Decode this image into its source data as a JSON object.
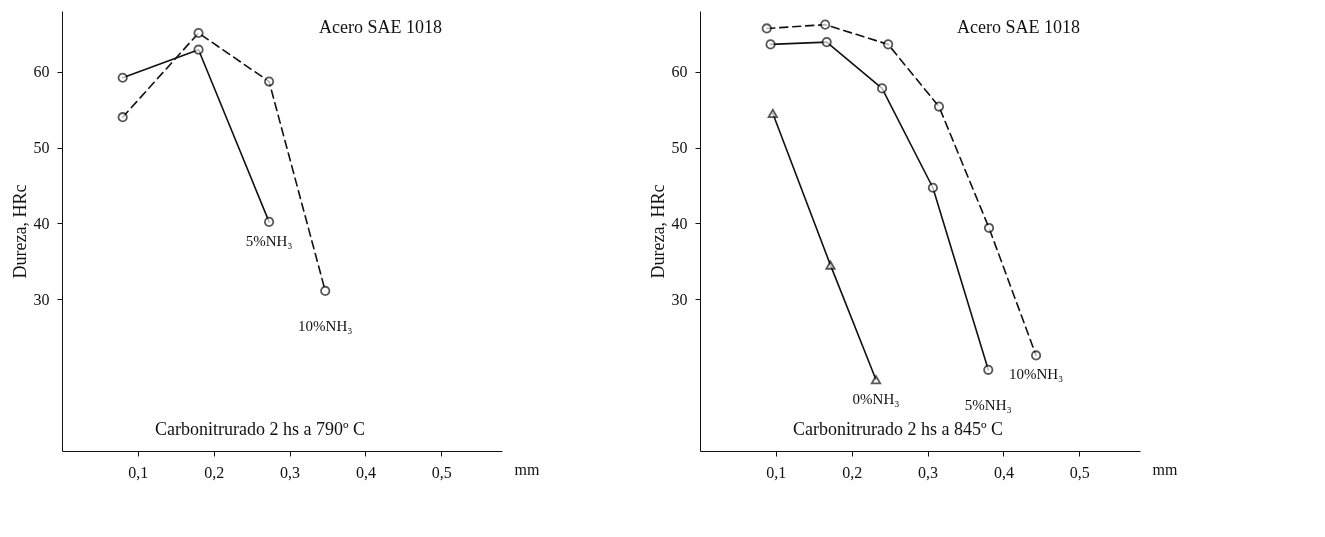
{
  "chart_data": [
    {
      "type": "line",
      "title": "Acero SAE 1018",
      "annotations": [
        "Carbonitrurado 2 hs a 790º C"
      ],
      "xlabel": "mm",
      "ylabel": "Dureza, HRc",
      "xlim": [
        0,
        0.58
      ],
      "ylim": [
        10,
        68
      ],
      "xticks": [
        {
          "value": 0.1,
          "label": "0,1"
        },
        {
          "value": 0.2,
          "label": "0,2"
        },
        {
          "value": 0.3,
          "label": "0,3"
        },
        {
          "value": 0.4,
          "label": "0,4"
        },
        {
          "value": 0.5,
          "label": "0,5"
        }
      ],
      "yticks": [
        30,
        40,
        50,
        60
      ],
      "grid": false,
      "series": [
        {
          "name": "5%NH₃",
          "color": "#111111",
          "marker": "circle",
          "line_style": "solid",
          "x": [
            0.08,
            0.18,
            0.273
          ],
          "values": [
            59.2,
            62.9,
            40.2
          ]
        },
        {
          "name": "10%NH₃",
          "color": "#111111",
          "marker": "circle",
          "line_style": "dashed",
          "x": [
            0.08,
            0.18,
            0.273,
            0.347
          ],
          "values": [
            54,
            65.1,
            58.7,
            31.1
          ]
        }
      ]
    },
    {
      "type": "line",
      "title": "Acero SAE 1018",
      "annotations": [
        "Carbonitrurado 2 hs a 845º C"
      ],
      "xlabel": "mm",
      "ylabel": "Dureza, HRc",
      "xlim": [
        0,
        0.58
      ],
      "ylim": [
        10,
        68
      ],
      "xticks": [
        {
          "value": 0.1,
          "label": "0,1"
        },
        {
          "value": 0.2,
          "label": "0,2"
        },
        {
          "value": 0.3,
          "label": "0,3"
        },
        {
          "value": 0.4,
          "label": "0,4"
        },
        {
          "value": 0.5,
          "label": "0,5"
        }
      ],
      "yticks": [
        30,
        40,
        50,
        60
      ],
      "grid": false,
      "series": [
        {
          "name": "0%NH₃",
          "color": "#111111",
          "marker": "triangle",
          "line_style": "solid",
          "x": [
            0.096,
            0.172,
            0.232
          ],
          "values": [
            54.5,
            34.5,
            19.4
          ]
        },
        {
          "name": "5%NH₃",
          "color": "#111111",
          "marker": "circle",
          "line_style": "solid",
          "x": [
            0.093,
            0.167,
            0.24,
            0.307,
            0.38
          ],
          "values": [
            63.6,
            63.9,
            57.8,
            44.7,
            20.7
          ]
        },
        {
          "name": "10%NH₃",
          "color": "#111111",
          "marker": "circle",
          "line_style": "dashed",
          "x": [
            0.088,
            0.165,
            0.248,
            0.315,
            0.381,
            0.443
          ],
          "values": [
            65.7,
            66.2,
            63.6,
            55.4,
            39.4,
            22.6
          ]
        }
      ]
    }
  ]
}
